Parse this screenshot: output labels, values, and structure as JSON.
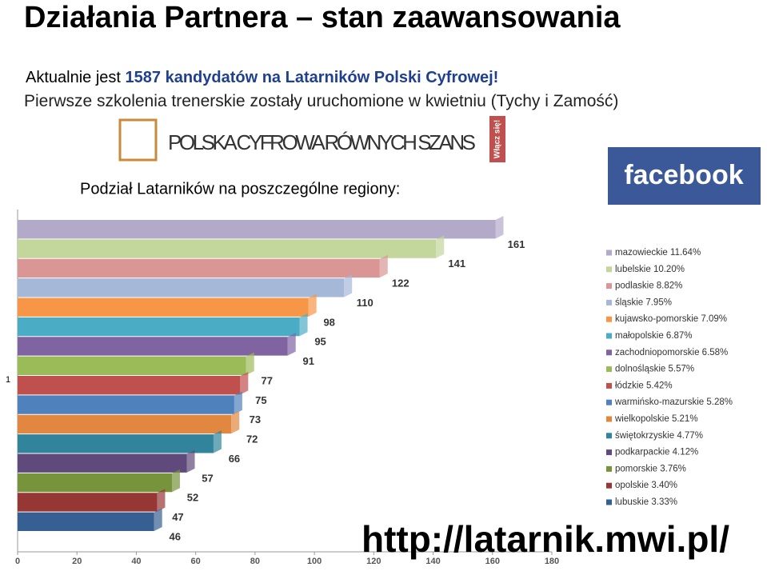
{
  "title": "Działania Partnera – stan zaawansowania",
  "intro_prefix": "Aktualnie jest",
  "intro_bold": "1587 kandydatów na Latarników Polski Cyfrowej!",
  "training": "Pierwsze szkolenia trenerskie zostały uruchomione w kwietniu (Tychy i Zamość)",
  "logo_text": "POLSKA CYFROWA RÓWNYCH SZANS",
  "logo_badge": "Włącz się!",
  "facebook": "facebook",
  "url": "http://latarnik.mwi.pl/",
  "chart_data": {
    "type": "hbar",
    "title": "Podział Latarników na poszczególne regiony:",
    "category_axis_label": "1",
    "categories": [
      "mazowieckie 11.64%",
      "lubelskie 10.20%",
      "podlaskie 8.82%",
      "śląskie 7.95%",
      "kujawsko-pomorskie 7.09%",
      "małopolskie 6.87%",
      "zachodniopomorskie 6.58%",
      "dolnośląskie 5.57%",
      "łódzkie 5.42%",
      "warmińsko-mazurskie 5.28%",
      "wielkopolskie 5.21%",
      "świętokrzyskie 4.77%",
      "podkarpackie 4.12%",
      "pomorskie 3.76%",
      "opolskie 3.40%",
      "lubuskie 3.33%"
    ],
    "values": [
      161,
      141,
      122,
      110,
      98,
      95,
      91,
      77,
      75,
      73,
      72,
      66,
      57,
      52,
      47,
      46
    ],
    "colors": [
      "#b3a9c9",
      "#c3d69b",
      "#d99694",
      "#a5b8d8",
      "#f79646",
      "#4bacc6",
      "#8064a2",
      "#9bbb59",
      "#c0504d",
      "#4f81bd",
      "#e2873f",
      "#31849b",
      "#604a7b",
      "#77933c",
      "#953735",
      "#366092"
    ],
    "xlim": [
      0,
      180
    ],
    "xticks": [
      0,
      20,
      40,
      60,
      80,
      100,
      120,
      140,
      160,
      180
    ]
  }
}
